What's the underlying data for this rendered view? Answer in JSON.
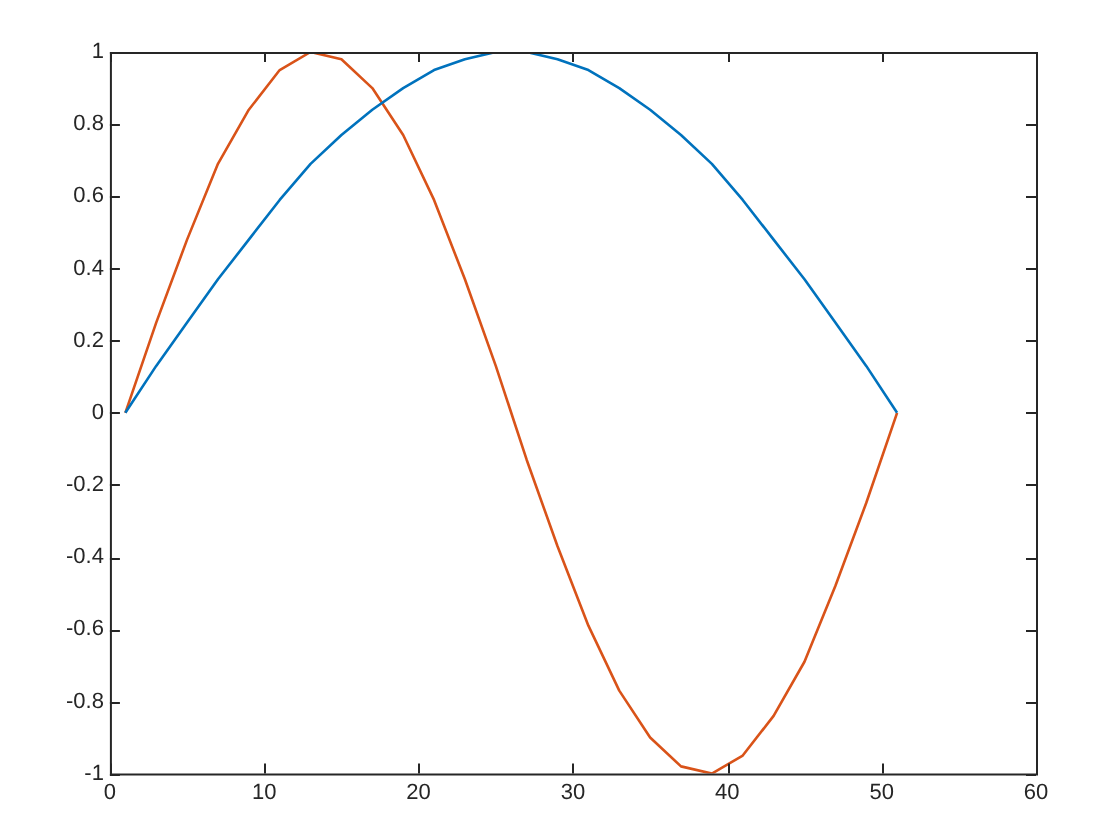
{
  "chart_data": {
    "type": "line",
    "x": [
      1,
      3,
      5,
      7,
      9,
      11,
      13,
      15,
      17,
      19,
      21,
      23,
      25,
      27,
      29,
      31,
      33,
      35,
      37,
      39,
      41,
      43,
      45,
      47,
      49,
      51
    ],
    "series": [
      {
        "color": "#0072bd",
        "values": [
          0,
          0.13,
          0.25,
          0.37,
          0.48,
          0.59,
          0.69,
          0.77,
          0.84,
          0.9,
          0.95,
          0.98,
          1,
          1,
          0.98,
          0.95,
          0.9,
          0.84,
          0.77,
          0.69,
          0.59,
          0.48,
          0.37,
          0.25,
          0.13,
          0
        ]
      },
      {
        "color": "#d95319",
        "values": [
          0,
          0.25,
          0.48,
          0.69,
          0.84,
          0.95,
          1,
          0.98,
          0.9,
          0.77,
          0.59,
          0.37,
          0.13,
          -0.13,
          -0.37,
          -0.59,
          -0.77,
          -0.9,
          -0.98,
          -1,
          -0.95,
          -0.84,
          -0.69,
          -0.48,
          -0.25,
          0
        ]
      }
    ],
    "xlim": [
      0,
      60
    ],
    "xticks": [
      0,
      10,
      20,
      30,
      40,
      50,
      60
    ],
    "ylim": [
      -1,
      1
    ],
    "yticks": [
      -1,
      -0.8,
      -0.6,
      -0.4,
      -0.2,
      0,
      0.2,
      0.4,
      0.6,
      0.8,
      1
    ],
    "grid": false,
    "legend": false,
    "marker": "none",
    "line_style": "solid"
  }
}
